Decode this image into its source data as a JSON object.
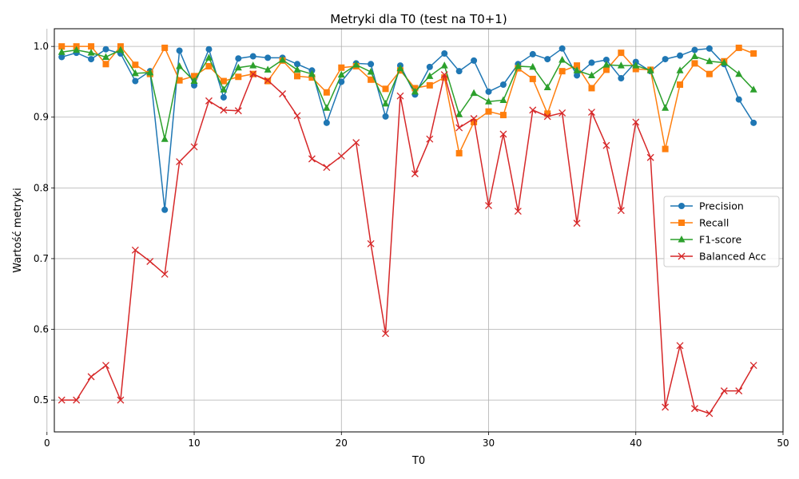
{
  "chart_data": {
    "type": "line",
    "title": "Metryki dla T0 (test na T0+1)",
    "xlabel": "T0",
    "ylabel": "Wartość metryki",
    "xlim": [
      0.5,
      50
    ],
    "ylim": [
      0.455,
      1.025
    ],
    "xticks": [
      0,
      10,
      20,
      30,
      40,
      50
    ],
    "yticks": [
      0.5,
      0.6,
      0.7,
      0.8,
      0.9,
      1.0
    ],
    "grid": true,
    "legend_position": "center-right",
    "x": [
      1,
      2,
      3,
      4,
      5,
      6,
      7,
      8,
      9,
      10,
      11,
      12,
      13,
      14,
      15,
      16,
      17,
      18,
      19,
      20,
      21,
      22,
      23,
      24,
      25,
      26,
      27,
      28,
      29,
      30,
      31,
      32,
      33,
      34,
      35,
      36,
      37,
      38,
      39,
      40,
      41,
      42,
      43,
      44,
      45,
      46,
      47,
      48
    ],
    "series": [
      {
        "name": "Precision",
        "color": "#1f77b4",
        "marker": "circle",
        "values": [
          0.985,
          0.991,
          0.982,
          0.996,
          0.99,
          0.951,
          0.965,
          0.769,
          0.994,
          0.945,
          0.996,
          0.928,
          0.983,
          0.986,
          0.984,
          0.984,
          0.975,
          0.966,
          0.892,
          0.95,
          0.976,
          0.975,
          0.901,
          0.973,
          0.932,
          0.971,
          0.99,
          0.965,
          0.98,
          0.936,
          0.946,
          0.975,
          0.989,
          0.982,
          0.997,
          0.959,
          0.977,
          0.981,
          0.955,
          0.978,
          0.965,
          0.982,
          0.987,
          0.995,
          0.997,
          0.975,
          0.925,
          0.892
        ]
      },
      {
        "name": "Recall",
        "color": "#ff7f0e",
        "marker": "square",
        "values": [
          1.0,
          1.0,
          1.0,
          0.975,
          1.0,
          0.974,
          0.961,
          0.998,
          0.952,
          0.958,
          0.972,
          0.951,
          0.957,
          0.961,
          0.951,
          0.98,
          0.958,
          0.956,
          0.935,
          0.97,
          0.972,
          0.953,
          0.94,
          0.966,
          0.941,
          0.945,
          0.956,
          0.849,
          0.893,
          0.908,
          0.903,
          0.969,
          0.954,
          0.905,
          0.965,
          0.973,
          0.941,
          0.967,
          0.991,
          0.968,
          0.967,
          0.855,
          0.946,
          0.976,
          0.961,
          0.979,
          0.998,
          0.99
        ]
      },
      {
        "name": "F1-score",
        "color": "#2ca02c",
        "marker": "triangle",
        "values": [
          0.992,
          0.995,
          0.991,
          0.985,
          0.995,
          0.962,
          0.963,
          0.869,
          0.972,
          0.951,
          0.984,
          0.939,
          0.97,
          0.973,
          0.967,
          0.981,
          0.967,
          0.961,
          0.913,
          0.96,
          0.974,
          0.964,
          0.919,
          0.969,
          0.936,
          0.958,
          0.973,
          0.904,
          0.934,
          0.922,
          0.924,
          0.972,
          0.971,
          0.942,
          0.981,
          0.966,
          0.959,
          0.974,
          0.973,
          0.973,
          0.966,
          0.913,
          0.966,
          0.986,
          0.979,
          0.977,
          0.961,
          0.939
        ]
      },
      {
        "name": "Balanced Acc",
        "color": "#d62728",
        "marker": "x",
        "values": [
          0.5,
          0.5,
          0.533,
          0.549,
          0.5,
          0.712,
          0.696,
          0.678,
          0.837,
          0.858,
          0.923,
          0.91,
          0.909,
          0.961,
          0.952,
          0.933,
          0.902,
          0.841,
          0.829,
          0.845,
          0.864,
          0.721,
          0.594,
          0.93,
          0.82,
          0.869,
          0.96,
          0.885,
          0.898,
          0.775,
          0.876,
          0.767,
          0.91,
          0.901,
          0.906,
          0.75,
          0.907,
          0.86,
          0.768,
          0.893,
          0.843,
          0.49,
          0.577,
          0.488,
          0.481,
          0.513,
          0.513,
          0.549
        ]
      }
    ]
  }
}
